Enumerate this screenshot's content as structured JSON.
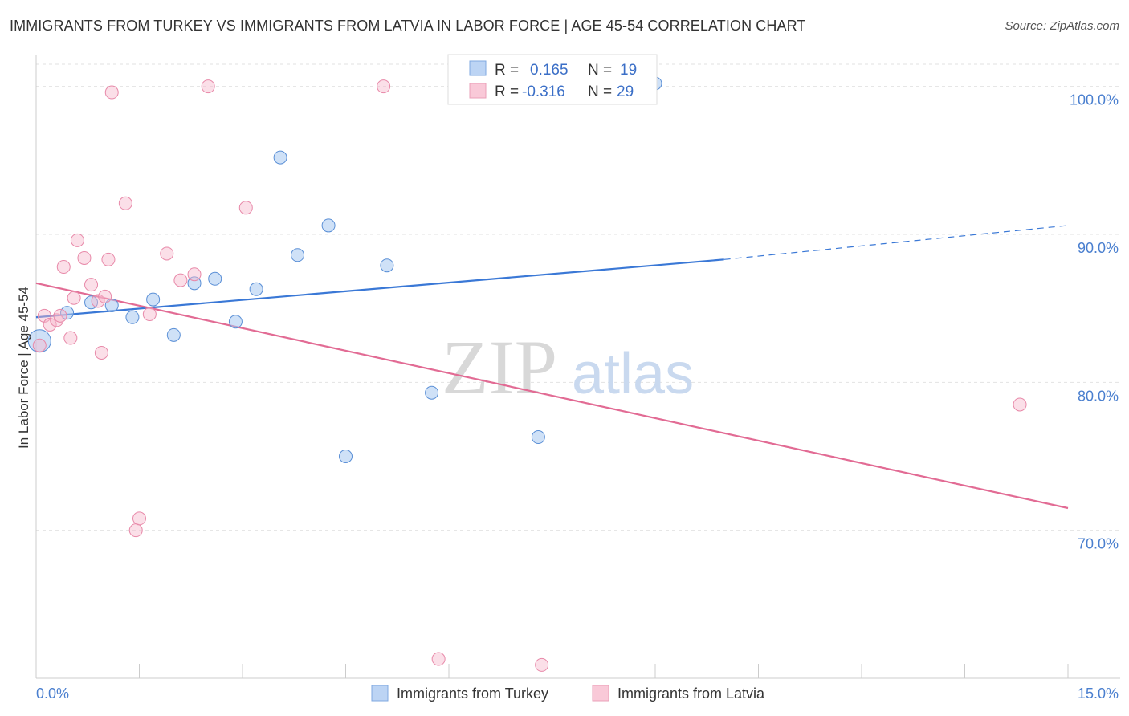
{
  "title": "IMMIGRANTS FROM TURKEY VS IMMIGRANTS FROM LATVIA IN LABOR FORCE | AGE 45-54 CORRELATION CHART",
  "source": "Source: ZipAtlas.com",
  "watermark": {
    "zip": "ZIP",
    "atlas": "atlas"
  },
  "legend_box": {
    "rows": [
      {
        "r_label": "R =",
        "r_value": "0.165",
        "n_label": "N =",
        "n_value": "19"
      },
      {
        "r_label": "R =",
        "r_value": "-0.316",
        "n_label": "N =",
        "n_value": "29"
      }
    ]
  },
  "chart_data": {
    "type": "scatter",
    "ylabel": "In Labor Force | Age 45-54",
    "xlim": [
      0,
      15
    ],
    "ylim": [
      60,
      101.5
    ],
    "x_tick_labels": [
      "0.0%",
      "15.0%"
    ],
    "y_ticks": [
      70,
      80,
      90,
      100
    ],
    "y_tick_labels": [
      "70.0%",
      "80.0%",
      "90.0%",
      "100.0%"
    ],
    "grid": true,
    "legend_position": "bottom",
    "colors": {
      "turkey": "#a8c8f0",
      "turkey_line": "#3a78d6",
      "latvia": "#f6b8cc",
      "latvia_line": "#e26b94"
    },
    "series": [
      {
        "name": "Immigrants from Turkey",
        "r": 0.165,
        "n": 19,
        "points": [
          [
            0.05,
            82.8
          ],
          [
            0.45,
            84.7
          ],
          [
            0.8,
            85.4
          ],
          [
            1.1,
            85.2
          ],
          [
            1.4,
            84.4
          ],
          [
            1.7,
            85.6
          ],
          [
            2.0,
            83.2
          ],
          [
            2.3,
            86.7
          ],
          [
            2.6,
            87.0
          ],
          [
            2.9,
            84.1
          ],
          [
            3.2,
            86.3
          ],
          [
            3.55,
            95.2
          ],
          [
            3.8,
            88.6
          ],
          [
            4.25,
            90.6
          ],
          [
            4.5,
            75.0
          ],
          [
            5.1,
            87.9
          ],
          [
            5.75,
            79.3
          ],
          [
            7.3,
            76.3
          ],
          [
            9.0,
            100.2
          ]
        ],
        "trend": {
          "x0": 0.0,
          "y0": 84.4,
          "x1": 10.0,
          "y1": 88.3,
          "dash_x1": 15.0,
          "dash_y1": 90.6
        }
      },
      {
        "name": "Immigrants from Latvia",
        "r": -0.316,
        "n": 29,
        "points": [
          [
            0.05,
            82.5
          ],
          [
            0.12,
            84.5
          ],
          [
            0.2,
            83.9
          ],
          [
            0.3,
            84.2
          ],
          [
            0.35,
            84.5
          ],
          [
            0.4,
            87.8
          ],
          [
            0.5,
            83.0
          ],
          [
            0.55,
            85.7
          ],
          [
            0.6,
            89.6
          ],
          [
            0.7,
            88.4
          ],
          [
            0.8,
            86.6
          ],
          [
            0.9,
            85.5
          ],
          [
            0.95,
            82.0
          ],
          [
            1.0,
            85.8
          ],
          [
            1.05,
            88.3
          ],
          [
            1.1,
            99.6
          ],
          [
            1.3,
            92.1
          ],
          [
            1.45,
            70.0
          ],
          [
            1.5,
            70.8
          ],
          [
            1.65,
            84.6
          ],
          [
            1.9,
            88.7
          ],
          [
            2.1,
            86.9
          ],
          [
            2.3,
            87.3
          ],
          [
            2.5,
            100.0
          ],
          [
            3.05,
            91.8
          ],
          [
            5.05,
            100.0
          ],
          [
            5.85,
            61.3
          ],
          [
            7.35,
            60.9
          ],
          [
            14.3,
            78.5
          ]
        ],
        "trend": {
          "x0": 0.0,
          "y0": 86.7,
          "x1": 15.0,
          "y1": 71.5
        }
      }
    ]
  }
}
